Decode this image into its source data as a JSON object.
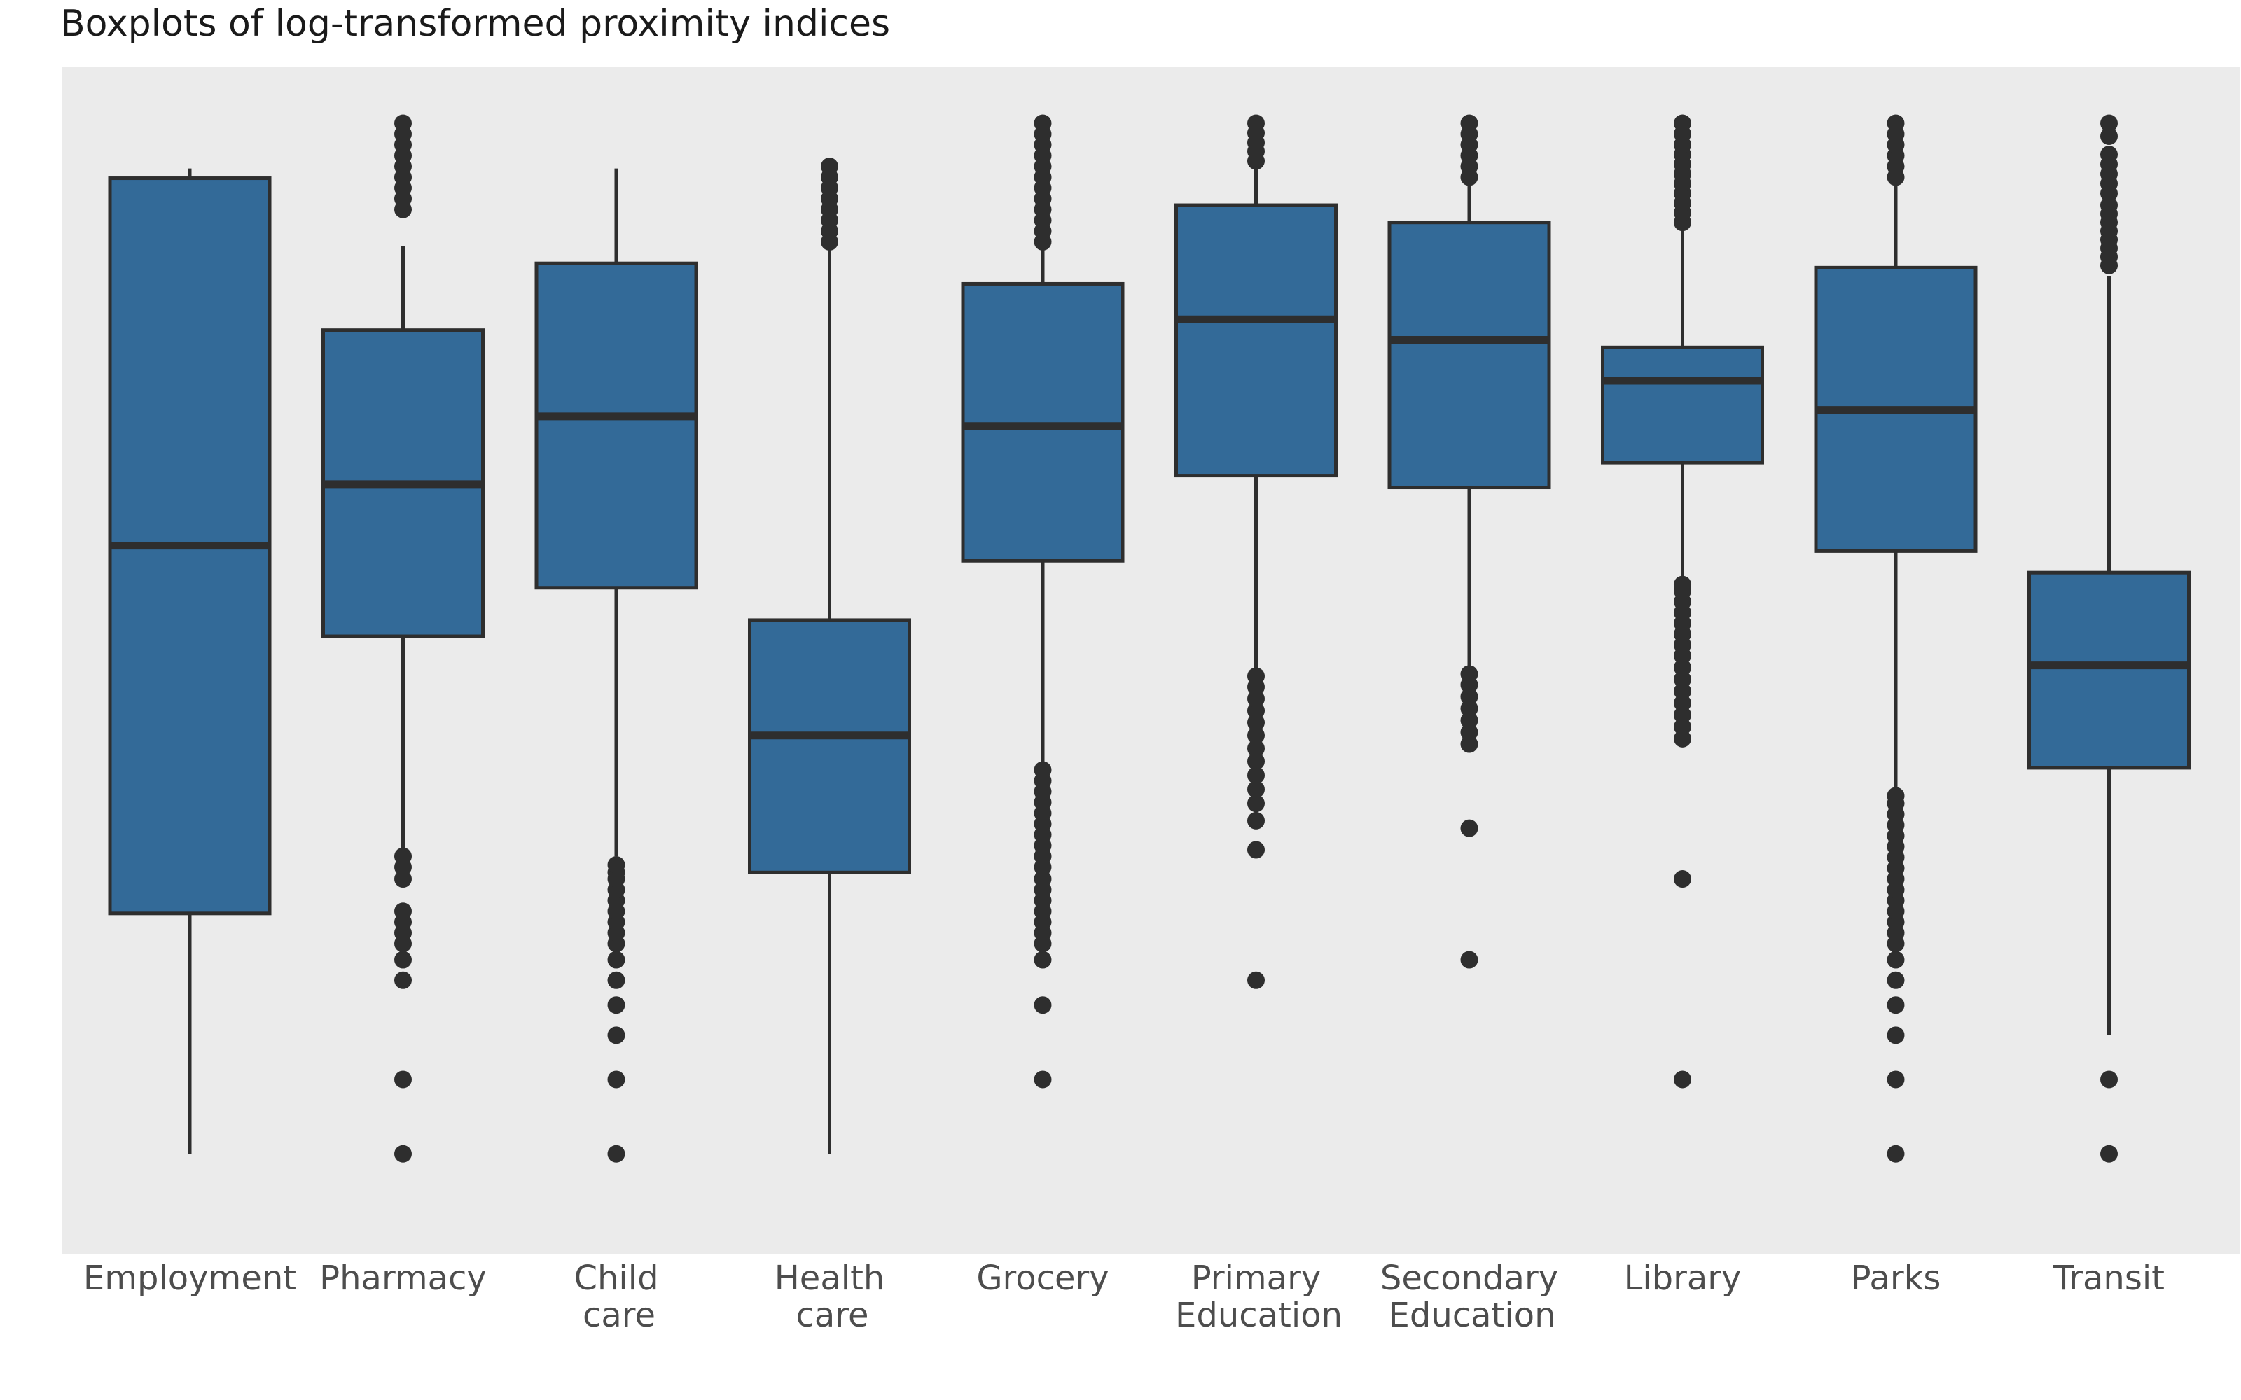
{
  "chart_data": {
    "type": "boxplot",
    "title": "Boxplots of log-transformed proximity indices",
    "xlabel": "",
    "ylabel": "",
    "ylim": [
      0,
      100
    ],
    "grid": false,
    "background": "#ebebeb",
    "box_color": "#336a98",
    "line_color": "#2e2e2e",
    "categories": [
      {
        "label": [
          "Employment"
        ],
        "whisker_low": 4.4,
        "q1": 26.7,
        "median": 60.8,
        "q3": 94.9,
        "whisker_high": 95.8,
        "outliers": []
      },
      {
        "label": [
          "Pharmacy"
        ],
        "whisker_low": 29.7,
        "q1": 52.4,
        "median": 66.5,
        "q3": 80.8,
        "whisker_high": 88.6,
        "outliers": [
          4.4,
          11.3,
          20.5,
          22.4,
          23.9,
          24.9,
          25.9,
          26.9,
          29.9,
          31.0,
          32.0,
          92.0,
          93.0,
          94.0,
          95.0,
          96.0,
          97.0,
          98.0,
          99.0,
          100.0
        ]
      },
      {
        "label": [
          "Child",
          "care"
        ],
        "whisker_low": 32.0,
        "q1": 56.9,
        "median": 72.8,
        "q3": 87.0,
        "whisker_high": 95.8,
        "outliers": [
          4.4,
          11.3,
          15.4,
          18.2,
          20.5,
          22.4,
          23.9,
          24.9,
          25.9,
          26.9,
          27.9,
          28.9,
          29.9,
          30.5,
          31.2
        ]
      },
      {
        "label": [
          "Health",
          "care"
        ],
        "whisker_low": 4.4,
        "q1": 30.5,
        "median": 43.2,
        "q3": 53.9,
        "whisker_high": 88.3,
        "outliers": [
          89.0,
          90.0,
          91.0,
          92.0,
          93.0,
          94.0,
          95.0,
          96.0
        ]
      },
      {
        "label": [
          "Grocery"
        ],
        "whisker_low": 40.6,
        "q1": 59.4,
        "median": 71.9,
        "q3": 85.1,
        "whisker_high": 88.5,
        "outliers": [
          11.3,
          18.2,
          22.4,
          23.9,
          24.9,
          25.9,
          26.9,
          27.9,
          28.9,
          29.9,
          31.0,
          32.0,
          33.0,
          34.0,
          35.0,
          36.0,
          37.0,
          38.0,
          39.0,
          40.0,
          89.0,
          90.0,
          91.0,
          92.0,
          93.0,
          94.0,
          95.0,
          96.0,
          97.0,
          98.0,
          99.0,
          100.0
        ]
      },
      {
        "label": [
          "Primary",
          "Education"
        ],
        "whisker_low": 48.9,
        "q1": 67.3,
        "median": 81.8,
        "q3": 92.4,
        "whisker_high": 95.8,
        "outliers": [
          20.5,
          32.6,
          35.3,
          36.9,
          38.2,
          39.5,
          40.8,
          42.0,
          43.2,
          44.4,
          45.5,
          46.6,
          47.7,
          48.7,
          96.5,
          97.4,
          98.2,
          99.1,
          100.0
        ]
      },
      {
        "label": [
          "Secondary",
          "Education"
        ],
        "whisker_low": 48.9,
        "q1": 66.2,
        "median": 79.9,
        "q3": 90.8,
        "whisker_high": 94.3,
        "outliers": [
          22.4,
          34.6,
          42.4,
          43.5,
          44.6,
          45.7,
          46.8,
          47.9,
          48.9,
          95.0,
          96.0,
          97.0,
          98.0,
          99.0,
          100.0
        ]
      },
      {
        "label": [
          "Library"
        ],
        "whisker_low": 57.6,
        "q1": 68.5,
        "median": 76.1,
        "q3": 79.2,
        "whisker_high": 90.0,
        "outliers": [
          11.3,
          29.9,
          42.9,
          44.0,
          45.1,
          46.2,
          47.3,
          48.4,
          49.5,
          50.6,
          51.6,
          52.6,
          53.6,
          54.6,
          55.6,
          56.6,
          57.2,
          90.8,
          91.7,
          92.6,
          93.5,
          94.4,
          95.3,
          96.2,
          97.1,
          98.0,
          99.0,
          100.0
        ]
      },
      {
        "label": [
          "Parks"
        ],
        "whisker_low": 38.2,
        "q1": 60.3,
        "median": 73.4,
        "q3": 86.6,
        "whisker_high": 94.2,
        "outliers": [
          4.4,
          11.3,
          15.4,
          18.2,
          20.5,
          22.4,
          23.9,
          24.9,
          25.9,
          26.9,
          27.9,
          28.9,
          29.9,
          30.9,
          31.9,
          32.9,
          33.9,
          34.9,
          35.9,
          36.9,
          37.6,
          95.0,
          96.0,
          97.0,
          98.0,
          99.0,
          100.0
        ]
      },
      {
        "label": [
          "Transit"
        ],
        "whisker_low": 15.4,
        "q1": 40.2,
        "median": 49.7,
        "q3": 58.3,
        "whisker_high": 85.8,
        "outliers": [
          4.4,
          11.3,
          86.8,
          87.6,
          88.4,
          89.2,
          90.0,
          90.8,
          91.6,
          92.4,
          93.5,
          94.4,
          95.3,
          96.2,
          97.1,
          98.8,
          100.0
        ]
      }
    ]
  }
}
